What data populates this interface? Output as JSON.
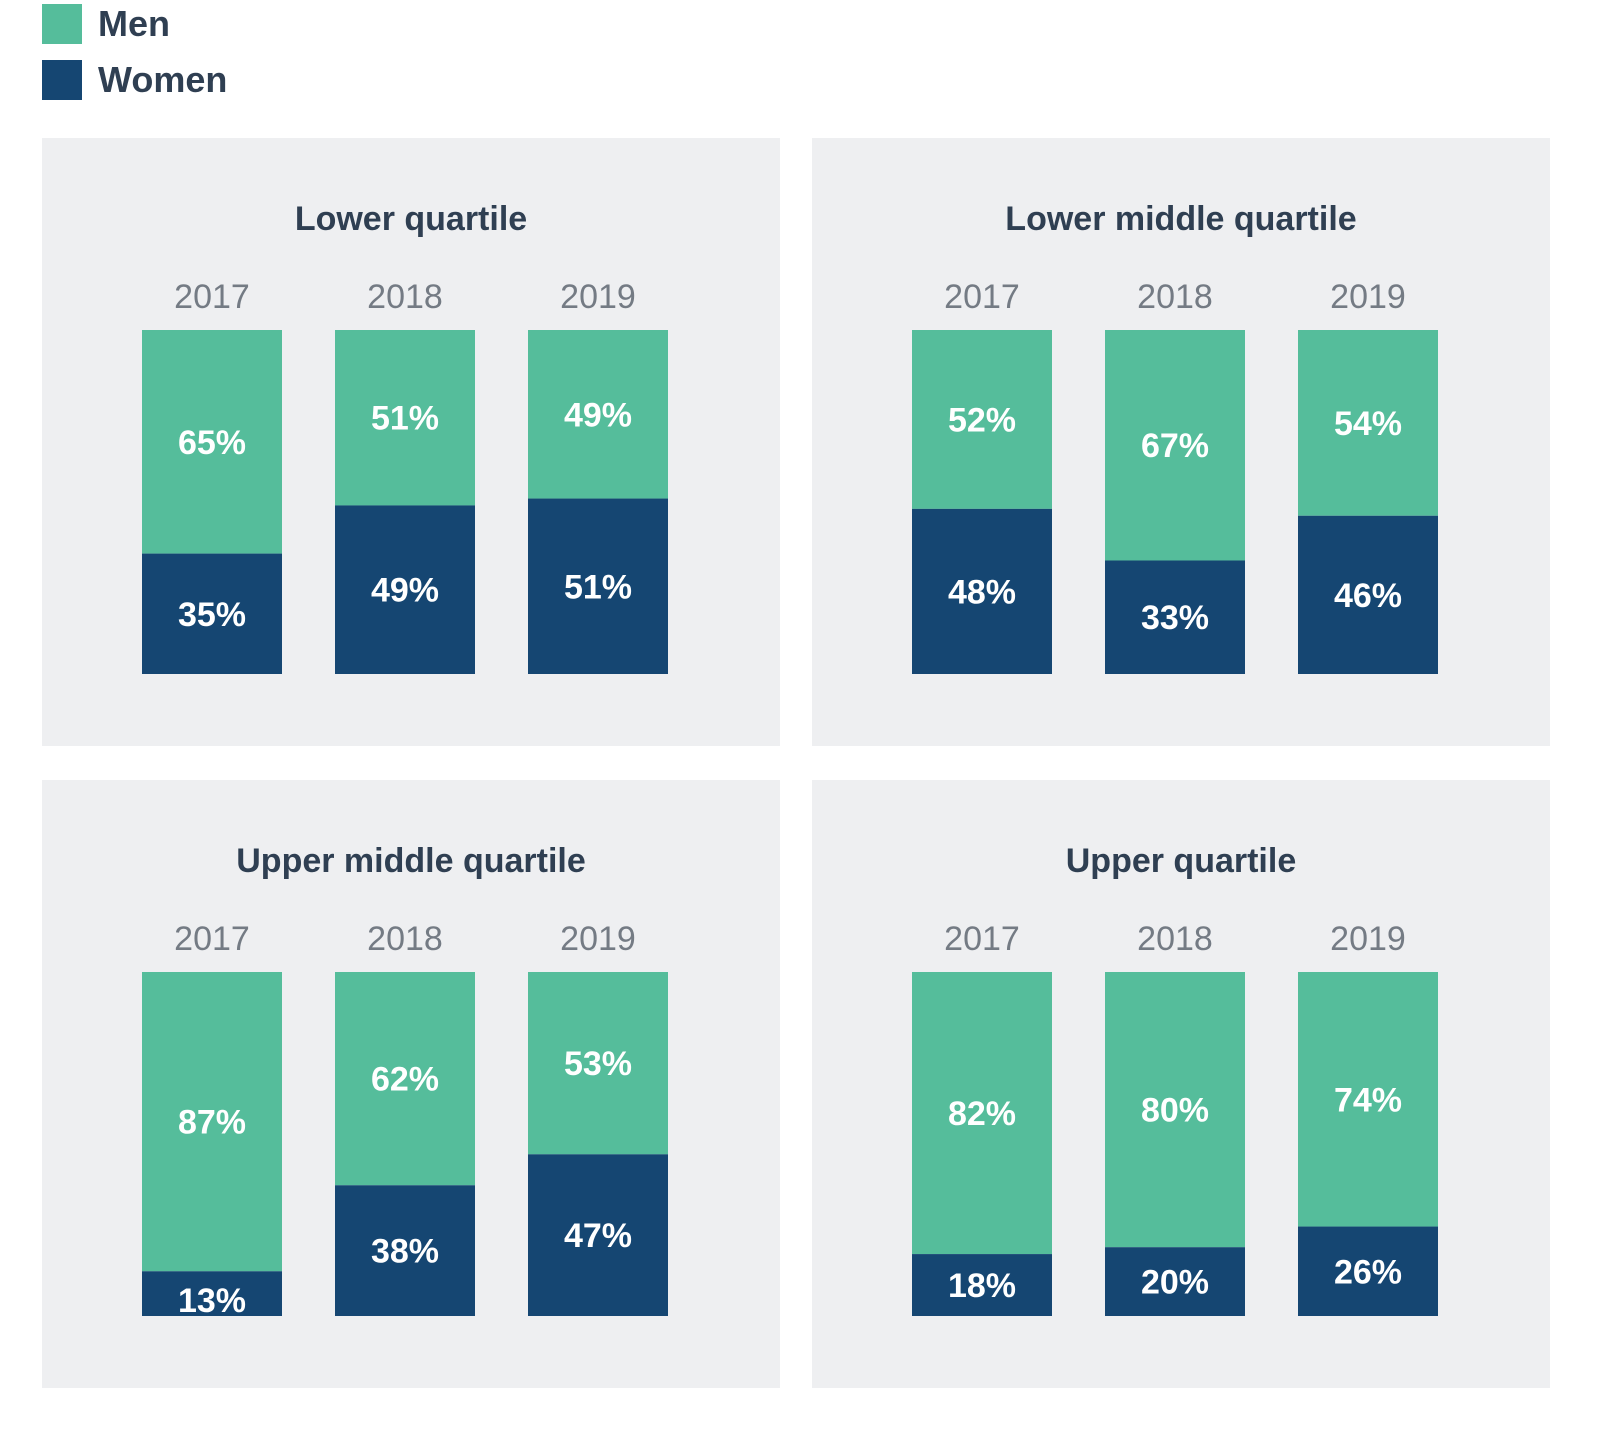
{
  "colors": {
    "men": "#55bd9b",
    "women": "#154672",
    "panel_bg": "#eeeff1"
  },
  "legend": [
    {
      "label": "Men",
      "color": "#55bd9b"
    },
    {
      "label": "Women",
      "color": "#154672"
    }
  ],
  "chart_data": [
    {
      "type": "bar",
      "stacked": true,
      "title": "Lower quartile",
      "categories": [
        "2017",
        "2018",
        "2019"
      ],
      "series": [
        {
          "name": "Men",
          "values": [
            65,
            51,
            49
          ],
          "labels": [
            "65%",
            "51%",
            "49%"
          ]
        },
        {
          "name": "Women",
          "values": [
            35,
            49,
            51
          ],
          "labels": [
            "35%",
            "49%",
            "51%"
          ]
        }
      ],
      "ylim": [
        0,
        100
      ]
    },
    {
      "type": "bar",
      "stacked": true,
      "title": "Lower middle quartile",
      "categories": [
        "2017",
        "2018",
        "2019"
      ],
      "series": [
        {
          "name": "Men",
          "values": [
            52,
            67,
            54
          ],
          "labels": [
            "52%",
            "67%",
            "54%"
          ]
        },
        {
          "name": "Women",
          "values": [
            48,
            33,
            46
          ],
          "labels": [
            "48%",
            "33%",
            "46%"
          ]
        }
      ],
      "ylim": [
        0,
        100
      ]
    },
    {
      "type": "bar",
      "stacked": true,
      "title": "Upper middle quartile",
      "categories": [
        "2017",
        "2018",
        "2019"
      ],
      "series": [
        {
          "name": "Men",
          "values": [
            87,
            62,
            53
          ],
          "labels": [
            "87%",
            "62%",
            "53%"
          ]
        },
        {
          "name": "Women",
          "values": [
            13,
            38,
            47
          ],
          "labels": [
            "13%",
            "38%",
            "47%"
          ]
        }
      ],
      "ylim": [
        0,
        100
      ]
    },
    {
      "type": "bar",
      "stacked": true,
      "title": "Upper quartile",
      "categories": [
        "2017",
        "2018",
        "2019"
      ],
      "series": [
        {
          "name": "Men",
          "values": [
            82,
            80,
            74
          ],
          "labels": [
            "82%",
            "80%",
            "74%"
          ]
        },
        {
          "name": "Women",
          "values": [
            18,
            20,
            26
          ],
          "labels": [
            "18%",
            "20%",
            "26%"
          ]
        }
      ],
      "ylim": [
        0,
        100
      ]
    }
  ]
}
